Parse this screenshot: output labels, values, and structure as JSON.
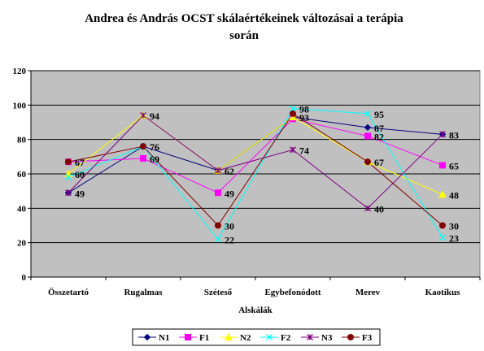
{
  "chart_data": {
    "type": "line",
    "title_lines": [
      "Andrea és András OCST skálaértékeinek változásai a terápia",
      "során"
    ],
    "xlabel": "Alskálák",
    "ylabel": "",
    "ylim": [
      0,
      120
    ],
    "yticks": [
      "0",
      "20",
      "40",
      "60",
      "80",
      "100",
      "120"
    ],
    "categories": [
      "Összetartó",
      "Rugalmas",
      "Széteső",
      "Egybefonódott",
      "Merev",
      "Kaotikus"
    ],
    "grid": true,
    "legend_position": "bottom",
    "series": [
      {
        "name": "N1",
        "color": "#000080",
        "marker": "diamond",
        "values": [
          49,
          76,
          62,
          93,
          87,
          83
        ]
      },
      {
        "name": "F1",
        "color": "#ff00ff",
        "marker": "square",
        "values": [
          67,
          69,
          49,
          92,
          82,
          65
        ]
      },
      {
        "name": "N2",
        "color": "#ffff00",
        "marker": "triangle",
        "values": [
          60,
          94,
          62,
          93,
          67,
          48
        ]
      },
      {
        "name": "F2",
        "color": "#00ffff",
        "marker": "x",
        "values": [
          58,
          76,
          22,
          98,
          95,
          23
        ]
      },
      {
        "name": "N3",
        "color": "#800080",
        "marker": "star",
        "values": [
          49,
          94,
          62,
          74,
          40,
          83
        ]
      },
      {
        "name": "F3",
        "color": "#800000",
        "marker": "circle",
        "values": [
          67,
          76,
          30,
          95,
          67,
          30
        ]
      }
    ],
    "data_labels": [
      {
        "series": 5,
        "index": 0,
        "text": "67"
      },
      {
        "series": 2,
        "index": 0,
        "text": "60"
      },
      {
        "series": 0,
        "index": 0,
        "text": "49"
      },
      {
        "series": 5,
        "index": 1,
        "text": "76"
      },
      {
        "series": 1,
        "index": 1,
        "text": "69"
      },
      {
        "series": 4,
        "index": 1,
        "text": "94"
      },
      {
        "series": 0,
        "index": 2,
        "text": "62"
      },
      {
        "series": 1,
        "index": 2,
        "text": "49"
      },
      {
        "series": 5,
        "index": 2,
        "text": "30"
      },
      {
        "series": 3,
        "index": 2,
        "text": "22"
      },
      {
        "series": 3,
        "index": 3,
        "text": "98"
      },
      {
        "series": 0,
        "index": 3,
        "text": "93"
      },
      {
        "series": 4,
        "index": 3,
        "text": "74"
      },
      {
        "series": 3,
        "index": 4,
        "text": "95"
      },
      {
        "series": 0,
        "index": 4,
        "text": "87"
      },
      {
        "series": 1,
        "index": 4,
        "text": "82"
      },
      {
        "series": 5,
        "index": 4,
        "text": "67"
      },
      {
        "series": 4,
        "index": 4,
        "text": "40"
      },
      {
        "series": 0,
        "index": 5,
        "text": "83"
      },
      {
        "series": 1,
        "index": 5,
        "text": "65"
      },
      {
        "series": 2,
        "index": 5,
        "text": "48"
      },
      {
        "series": 5,
        "index": 5,
        "text": "30"
      },
      {
        "series": 3,
        "index": 5,
        "text": "23"
      }
    ]
  },
  "colors": {
    "plot_background": "#c0c0c0",
    "gridline": "#000000"
  }
}
